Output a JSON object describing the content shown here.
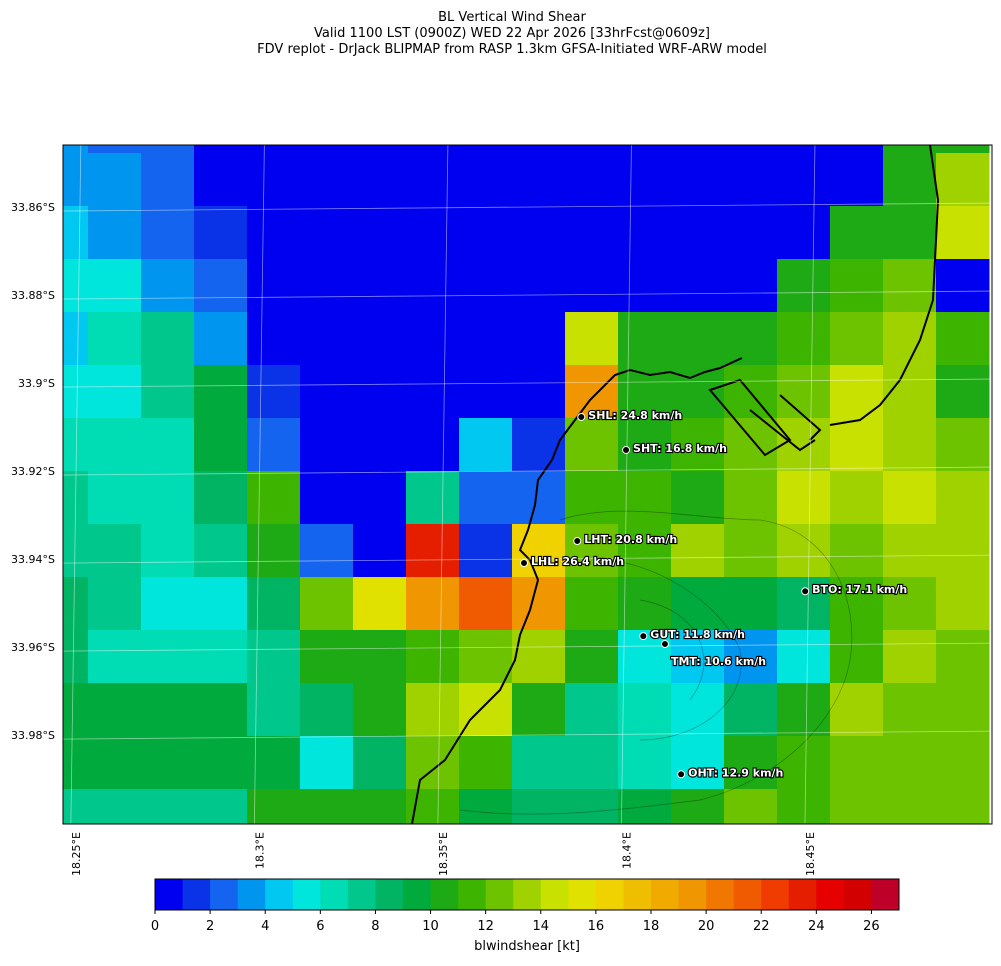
{
  "titles": [
    "BL Vertical Wind Shear",
    "Valid 1100 LST (0900Z) WED 22 Apr 2026 [33hrFcst@0609z]",
    "FDV replot - DrJack BLIPMAP from RASP 1.3km GFSA-Initiated WRF-ARW model"
  ],
  "map": {
    "lonlim": [
      18.2465,
      18.4996
    ],
    "latlim": [
      -34.0002,
      -33.8459
    ],
    "lat_ticks": [
      {
        "value": -33.86,
        "label": "33.86°S"
      },
      {
        "value": -33.88,
        "label": "33.88°S"
      },
      {
        "value": -33.9,
        "label": "33.9°S"
      },
      {
        "value": -33.92,
        "label": "33.92°S"
      },
      {
        "value": -33.94,
        "label": "33.94°S"
      },
      {
        "value": -33.96,
        "label": "33.96°S"
      },
      {
        "value": -33.98,
        "label": "33.98°S"
      }
    ],
    "lon_ticks": [
      {
        "value": 18.25,
        "label": "18.25°E"
      },
      {
        "value": 18.3,
        "label": "18.3°E"
      },
      {
        "value": 18.35,
        "label": "18.35°E"
      },
      {
        "value": 18.4,
        "label": "18.4°E"
      },
      {
        "value": 18.45,
        "label": "18.45°E"
      }
    ],
    "grid_values": [
      [
        3,
        2,
        2,
        0,
        0,
        0,
        0,
        0,
        0,
        0,
        0,
        0,
        0,
        0,
        0,
        0,
        10,
        10
      ],
      [
        3,
        3,
        2,
        0,
        0,
        0,
        0,
        0,
        0,
        0,
        0,
        0,
        0,
        0,
        0,
        0,
        10,
        13
      ],
      [
        4,
        3,
        2,
        1,
        0,
        0,
        0,
        0,
        0,
        0,
        0,
        0,
        0,
        0,
        0,
        10,
        10,
        14
      ],
      [
        5,
        5,
        3,
        2,
        0,
        0,
        0,
        0,
        0,
        0,
        0,
        0,
        0,
        0,
        10,
        11,
        12,
        0
      ],
      [
        4,
        6,
        7,
        3,
        0,
        0,
        0,
        0,
        0,
        0,
        14,
        10,
        10,
        10,
        11,
        12,
        13,
        11
      ],
      [
        5,
        5,
        7,
        9,
        1,
        0,
        0,
        0,
        0,
        0,
        19,
        10,
        10,
        11,
        12,
        14,
        13,
        10
      ],
      [
        6,
        6,
        6,
        9,
        2,
        0,
        0,
        0,
        4,
        1,
        12,
        10,
        11,
        12,
        13,
        14,
        13,
        12
      ],
      [
        7,
        6,
        6,
        8,
        11,
        0,
        0,
        7,
        2,
        2,
        11,
        11,
        10,
        12,
        14,
        13,
        14,
        13
      ],
      [
        7,
        7,
        6,
        7,
        10,
        2,
        0,
        23,
        1,
        16,
        12,
        11,
        13,
        12,
        13,
        12,
        13,
        13
      ],
      [
        8,
        7,
        5,
        5,
        8,
        12,
        15,
        19,
        21,
        19,
        11,
        10,
        9,
        9,
        8,
        11,
        12,
        13
      ],
      [
        8,
        6,
        6,
        6,
        7,
        10,
        10,
        11,
        12,
        13,
        10,
        5,
        4,
        3,
        5,
        11,
        13,
        12
      ],
      [
        9,
        9,
        9,
        9,
        7,
        8,
        10,
        13,
        14,
        10,
        7,
        6,
        5,
        8,
        10,
        13,
        12,
        12
      ],
      [
        9,
        9,
        9,
        9,
        9,
        5,
        8,
        12,
        11,
        7,
        7,
        6,
        5,
        10,
        11,
        12,
        12,
        12
      ],
      [
        7,
        7,
        7,
        7,
        10,
        10,
        10,
        11,
        9,
        8,
        8,
        9,
        10,
        12,
        11,
        12,
        12,
        12
      ]
    ],
    "stations": [
      {
        "label": "SHL: 24.8 km/h",
        "lon": 18.3877,
        "lat": -33.9077
      },
      {
        "label": "SHT: 16.8 km/h",
        "lon": 18.3999,
        "lat": -33.9152
      },
      {
        "label": "LHT: 20.8 km/h",
        "lon": 18.3866,
        "lat": -33.9359
      },
      {
        "label": "LHL: 26.4 km/h",
        "lon": 18.3721,
        "lat": -33.9409
      },
      {
        "label": "BTO: 17.1 km/h",
        "lon": 18.4487,
        "lat": -33.9473
      },
      {
        "label": "GUT: 11.8 km/h",
        "lon": 18.4046,
        "lat": -33.9575
      },
      {
        "label": "TMT: 10.6 km/h",
        "lon": 18.4105,
        "lat": -33.9593
      },
      {
        "label": "OHT: 12.9 km/h",
        "lon": 18.4149,
        "lat": -33.9889
      }
    ]
  },
  "colorbar": {
    "label": "blwindshear [kt]",
    "lim": [
      0,
      27
    ],
    "ticks": [
      0,
      2,
      4,
      6,
      8,
      10,
      12,
      14,
      16,
      18,
      20,
      22,
      24,
      26
    ],
    "colors": [
      "#0000f0",
      "#0a32e6",
      "#1464f0",
      "#0096f0",
      "#00c8f0",
      "#00e6dc",
      "#00dcb4",
      "#00c88c",
      "#00b464",
      "#00aa3c",
      "#1eaa14",
      "#3cb400",
      "#6ec300",
      "#a0d200",
      "#c8e100",
      "#e1e100",
      "#f0d200",
      "#f0be00",
      "#f0aa00",
      "#f09600",
      "#f07800",
      "#f05a00",
      "#f03c00",
      "#e61e00",
      "#e60000",
      "#d20000",
      "#be0028"
    ]
  }
}
